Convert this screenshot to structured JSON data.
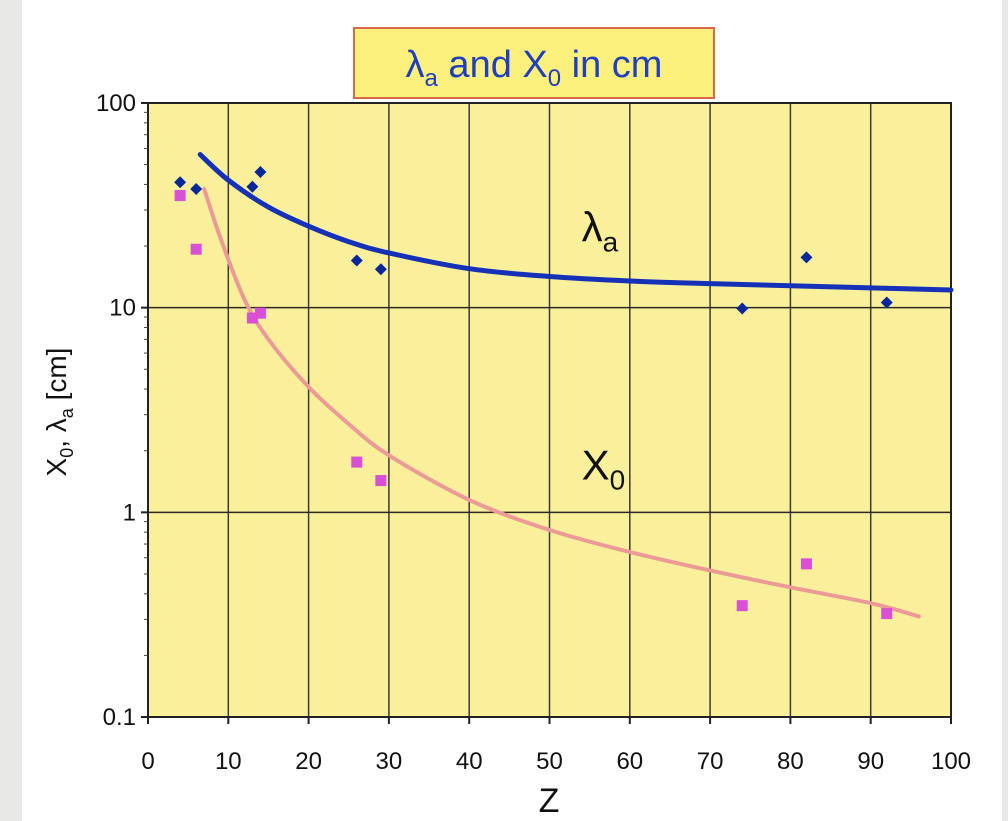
{
  "colors": {
    "plot_background": "#faf09c",
    "title_background": "#fbf07c",
    "title_border": "#d66a4a",
    "title_text": "#1f3fbf",
    "lambda_series": "#08289a",
    "lambda_curve": "#1431b8",
    "x0_series": "#d94fd6",
    "x0_curve": "#ec9a96"
  },
  "chart_data": {
    "type": "scatter",
    "title_parts": {
      "symbol1": "λ",
      "sub1": "a",
      "mid": " and X",
      "sub2": "0",
      "end": " in cm"
    },
    "xlabel": "Z",
    "ylabel_parts": {
      "a": "X",
      "a_sub": "0",
      "sep": ", λ",
      "b_sub": "a",
      "unit": " [cm]"
    },
    "xlim": [
      0,
      100
    ],
    "ylim": [
      0.1,
      100
    ],
    "yscale": "log",
    "grid": true,
    "x_ticks": [
      "0",
      "10",
      "20",
      "30",
      "40",
      "50",
      "60",
      "70",
      "80",
      "90",
      "100"
    ],
    "y_ticks": [
      "0.1",
      "1",
      "10",
      "100"
    ],
    "series": [
      {
        "marker": "diamond",
        "points": [
          {
            "x": 4,
            "y": 41
          },
          {
            "x": 6,
            "y": 38
          },
          {
            "x": 13,
            "y": 39
          },
          {
            "x": 14,
            "y": 46
          },
          {
            "x": 26,
            "y": 17
          },
          {
            "x": 29,
            "y": 15.4
          },
          {
            "x": 74,
            "y": 9.9
          },
          {
            "x": 82,
            "y": 17.6
          },
          {
            "x": 92,
            "y": 10.6
          }
        ]
      },
      {
        "marker": "square",
        "points": [
          {
            "x": 4,
            "y": 35.3
          },
          {
            "x": 6,
            "y": 19.3
          },
          {
            "x": 13,
            "y": 8.9
          },
          {
            "x": 14,
            "y": 9.4
          },
          {
            "x": 26,
            "y": 1.76
          },
          {
            "x": 29,
            "y": 1.43
          },
          {
            "x": 74,
            "y": 0.35
          },
          {
            "x": 82,
            "y": 0.56
          },
          {
            "x": 92,
            "y": 0.32
          }
        ]
      }
    ],
    "curves": [
      {
        "points": [
          {
            "x": 6.5,
            "y": 56
          },
          {
            "x": 10,
            "y": 42
          },
          {
            "x": 15,
            "y": 31
          },
          {
            "x": 20,
            "y": 25
          },
          {
            "x": 25,
            "y": 21
          },
          {
            "x": 30,
            "y": 18.5
          },
          {
            "x": 40,
            "y": 15.5
          },
          {
            "x": 50,
            "y": 14.2
          },
          {
            "x": 60,
            "y": 13.5
          },
          {
            "x": 70,
            "y": 13.1
          },
          {
            "x": 80,
            "y": 12.8
          },
          {
            "x": 90,
            "y": 12.5
          },
          {
            "x": 100,
            "y": 12.2
          }
        ]
      },
      {
        "points": [
          {
            "x": 7,
            "y": 38
          },
          {
            "x": 9,
            "y": 22
          },
          {
            "x": 12,
            "y": 11
          },
          {
            "x": 15,
            "y": 7
          },
          {
            "x": 20,
            "y": 4.1
          },
          {
            "x": 25,
            "y": 2.7
          },
          {
            "x": 30,
            "y": 1.9
          },
          {
            "x": 40,
            "y": 1.15
          },
          {
            "x": 50,
            "y": 0.82
          },
          {
            "x": 60,
            "y": 0.64
          },
          {
            "x": 70,
            "y": 0.52
          },
          {
            "x": 80,
            "y": 0.43
          },
          {
            "x": 90,
            "y": 0.36
          },
          {
            "x": 96,
            "y": 0.31
          }
        ]
      }
    ],
    "annotations": [
      {
        "name": "lambda-annotation",
        "main": "λ",
        "sub": "a",
        "x": 54,
        "y": 21
      },
      {
        "name": "x0-annotation",
        "main": "X",
        "sub": "0",
        "x": 54,
        "y": 1.45
      }
    ]
  }
}
